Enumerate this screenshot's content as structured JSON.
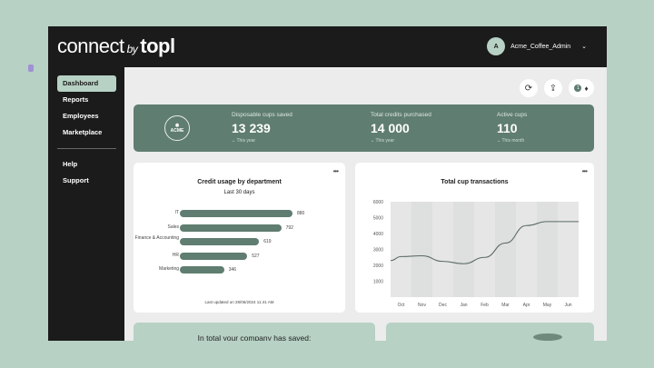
{
  "header": {
    "logo_main": "connect",
    "logo_by": "by",
    "logo_brand": "topl",
    "user_initial": "A",
    "user_name": "Acme_Coffee_Admin"
  },
  "sidebar": {
    "items": [
      {
        "label": "Dashboard"
      },
      {
        "label": "Reports"
      },
      {
        "label": "Employees"
      },
      {
        "label": "Marketplace"
      },
      {
        "label": "Help"
      },
      {
        "label": "Support"
      }
    ]
  },
  "toolbar": {
    "notification_count": "1"
  },
  "stats": {
    "logo_text": "ACME",
    "items": [
      {
        "label": "Disposable cups saved",
        "value": "13 239",
        "period": "This year"
      },
      {
        "label": "Total credits purchased",
        "value": "14 000",
        "period": "This year"
      },
      {
        "label": "Active cups",
        "value": "110",
        "period": "This month"
      }
    ]
  },
  "chart_data": [
    {
      "type": "bar",
      "title": "Credit usage by department",
      "subtitle": "Last 30 days",
      "categories": [
        "IT",
        "Sales",
        "Finance & Accounting",
        "HR",
        "Marketing"
      ],
      "values": [
        880,
        792,
        619,
        527,
        346
      ],
      "footer": "Last updated on 28/06/2024 11:41 AM"
    },
    {
      "type": "line",
      "title": "Total cup transactions",
      "categories": [
        "Oct",
        "Nov",
        "Dec",
        "Jan",
        "Feb",
        "Mar",
        "Apr",
        "May",
        "Jun"
      ],
      "values": [
        2550,
        2600,
        2250,
        2100,
        2500,
        3400,
        4500,
        4750,
        4750
      ],
      "yticks": [
        1000,
        2000,
        3000,
        4000,
        5000,
        6000
      ],
      "ylim": [
        0,
        6000
      ]
    }
  ],
  "bottom": {
    "saved_title": "In total your company has saved:"
  }
}
